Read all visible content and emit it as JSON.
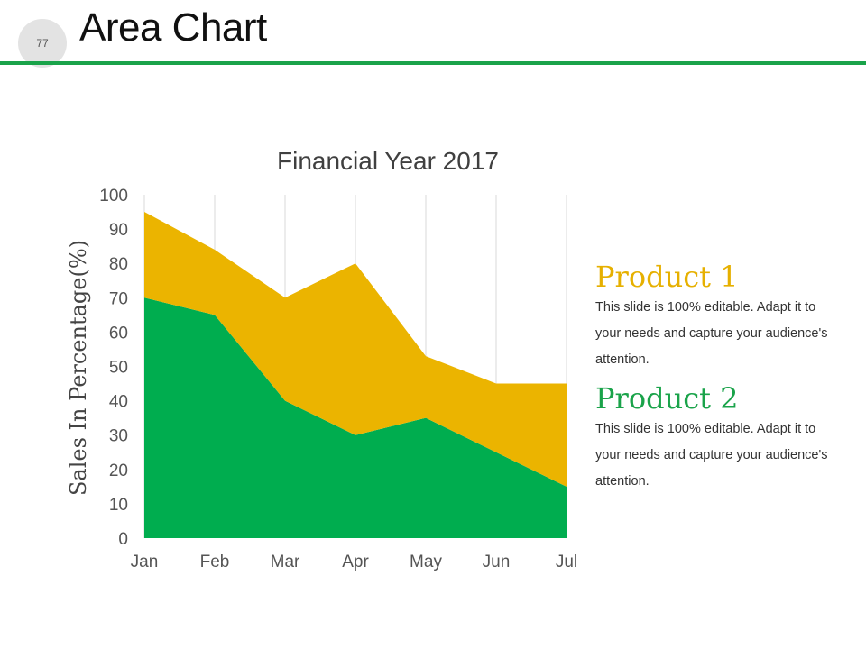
{
  "slide": {
    "page_number": "77",
    "title": "Area Chart",
    "accent_color": "#1aa34a"
  },
  "legend": [
    {
      "name": "Product 1",
      "color": "#e6b000",
      "description": "This slide is 100% editable. Adapt it to your needs and capture your audience's attention."
    },
    {
      "name": "Product 2",
      "color": "#1aa34a",
      "description": "This slide is 100% editable. Adapt it to your needs and capture your audience's attention."
    }
  ],
  "chart_data": {
    "type": "area",
    "stacked": true,
    "title": "Financial Year 2017",
    "xlabel": "",
    "ylabel": "Sales In Percentage(%)",
    "categories": [
      "Jan",
      "Feb",
      "Mar",
      "Apr",
      "May",
      "Jun",
      "Jul"
    ],
    "ylim": [
      0,
      100
    ],
    "yticks": [
      0,
      10,
      20,
      30,
      40,
      50,
      60,
      70,
      80,
      90,
      100
    ],
    "grid": "vertical",
    "series": [
      {
        "name": "Product 2",
        "values": [
          70,
          65,
          40,
          30,
          35,
          25,
          15
        ],
        "color": "#00ad4f"
      },
      {
        "name": "Product 1",
        "values": [
          25,
          19,
          30,
          50,
          18,
          20,
          30
        ],
        "color": "#ebb400"
      }
    ]
  }
}
